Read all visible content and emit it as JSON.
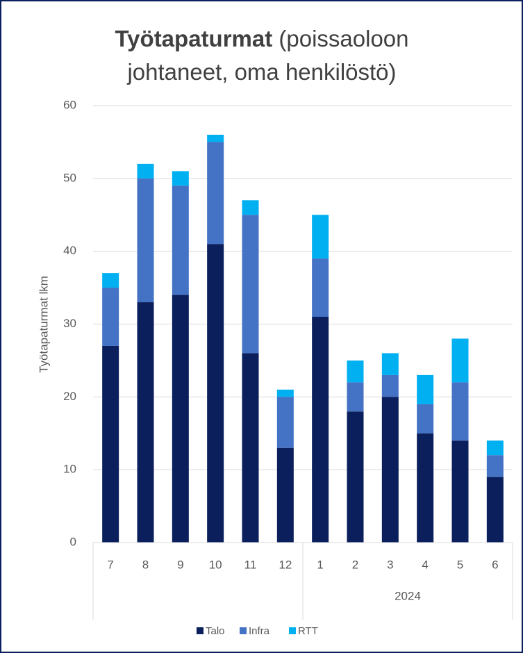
{
  "chart_data": {
    "type": "stacked_bar",
    "title": "Työtapaturmat",
    "subtitle": "(poissaoloon johtaneet, oma henkilöstö)",
    "y_label": "Työtapaturmat lkm",
    "groups": [
      {
        "label": null,
        "categories": [
          "7",
          "8",
          "9",
          "10",
          "11",
          "12"
        ]
      },
      {
        "label": "2024",
        "categories": [
          "1",
          "2",
          "3",
          "4",
          "5",
          "6"
        ]
      }
    ],
    "series": [
      {
        "name": "Talo",
        "color": "#0a1f5c",
        "values": [
          27,
          33,
          34,
          41,
          26,
          13,
          31,
          18,
          20,
          15,
          14,
          9
        ]
      },
      {
        "name": "Infra",
        "color": "#4472c4",
        "values": [
          8,
          17,
          15,
          14,
          19,
          7,
          8,
          4,
          3,
          4,
          8,
          3
        ]
      },
      {
        "name": "RTT",
        "color": "#00b0f0",
        "values": [
          2,
          2,
          2,
          1,
          2,
          1,
          6,
          3,
          3,
          4,
          6,
          2
        ]
      }
    ],
    "ylim": [
      0,
      60
    ],
    "yticks": [
      0,
      10,
      20,
      30,
      40,
      50,
      60
    ],
    "grid": true,
    "legend": "bottom"
  }
}
